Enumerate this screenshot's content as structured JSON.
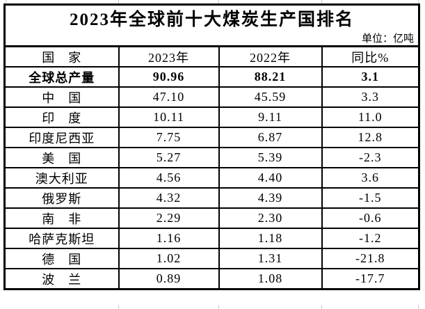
{
  "table": {
    "title": "2023年全球前十大煤炭生产国排名",
    "unit_note": "单位：亿吨",
    "columns": [
      "国　家",
      "2023年",
      "2022年",
      "同比%"
    ],
    "rows": [
      {
        "country": "全球总产量",
        "y2023": "90.96",
        "y2022": "88.21",
        "yoy": "3.1",
        "bold": true
      },
      {
        "country": "中　国",
        "y2023": "47.10",
        "y2022": "45.59",
        "yoy": "3.3",
        "bold": false
      },
      {
        "country": "印　度",
        "y2023": "10.11",
        "y2022": "9.11",
        "yoy": "11.0",
        "bold": false
      },
      {
        "country": "印度尼西亚",
        "y2023": "7.75",
        "y2022": "6.87",
        "yoy": "12.8",
        "bold": false
      },
      {
        "country": "美　国",
        "y2023": "5.27",
        "y2022": "5.39",
        "yoy": "-2.3",
        "bold": false
      },
      {
        "country": "澳大利亚",
        "y2023": "4.56",
        "y2022": "4.40",
        "yoy": "3.6",
        "bold": false
      },
      {
        "country": "俄罗斯",
        "y2023": "4.32",
        "y2022": "4.39",
        "yoy": "-1.5",
        "bold": false
      },
      {
        "country": "南　非",
        "y2023": "2.29",
        "y2022": "2.30",
        "yoy": "-0.6",
        "bold": false
      },
      {
        "country": "哈萨克斯坦",
        "y2023": "1.16",
        "y2022": "1.18",
        "yoy": "-1.2",
        "bold": false
      },
      {
        "country": "德　国",
        "y2023": "1.02",
        "y2022": "1.31",
        "yoy": "-21.8",
        "bold": false
      },
      {
        "country": "波　兰",
        "y2023": "0.89",
        "y2022": "1.08",
        "yoy": "-17.7",
        "bold": false
      }
    ]
  },
  "colors": {
    "border": "#000000",
    "text": "#000000",
    "background": "#ffffff",
    "gridline_stub": "#c8c8c8"
  },
  "chart_data": {
    "type": "table",
    "title": "2023年全球前十大煤炭生产国排名",
    "unit": "亿吨",
    "columns": [
      "国家",
      "2023年",
      "2022年",
      "同比%"
    ],
    "rows": [
      [
        "全球总产量",
        90.96,
        88.21,
        3.1
      ],
      [
        "中国",
        47.1,
        45.59,
        3.3
      ],
      [
        "印度",
        10.11,
        9.11,
        11.0
      ],
      [
        "印度尼西亚",
        7.75,
        6.87,
        12.8
      ],
      [
        "美国",
        5.27,
        5.39,
        -2.3
      ],
      [
        "澳大利亚",
        4.56,
        4.4,
        3.6
      ],
      [
        "俄罗斯",
        4.32,
        4.39,
        -1.5
      ],
      [
        "南非",
        2.29,
        2.3,
        -0.6
      ],
      [
        "哈萨克斯坦",
        1.16,
        1.18,
        -1.2
      ],
      [
        "德国",
        1.02,
        1.31,
        -21.8
      ],
      [
        "波兰",
        0.89,
        1.08,
        -17.7
      ]
    ]
  }
}
